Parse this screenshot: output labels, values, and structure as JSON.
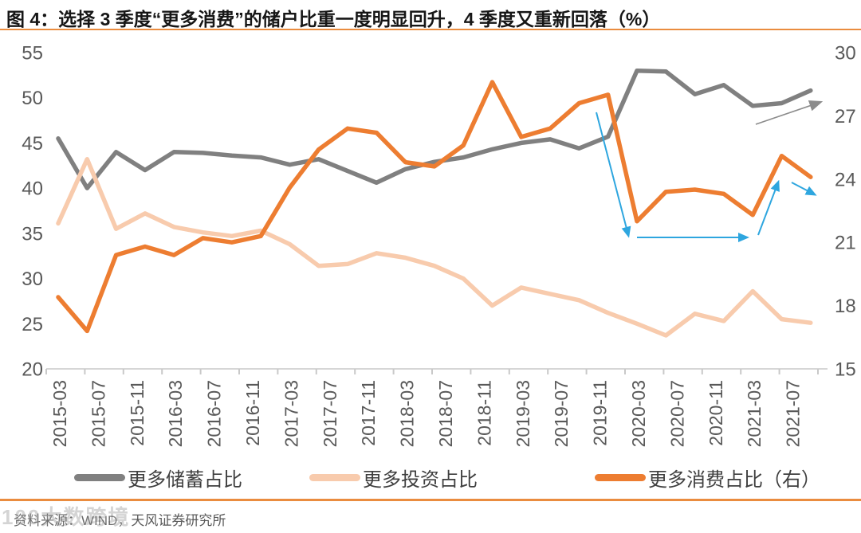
{
  "title": {
    "text": "图 4：选择 3 季度“更多消费”的储户比重一度明显回升，4 季度又重新回落（%）"
  },
  "source": {
    "text": "资料来源：WIND，天风证券研究所"
  },
  "watermark": {
    "text": "100大数跨境"
  },
  "legend": [
    {
      "label": "更多储蓄占比",
      "color": "#808080"
    },
    {
      "label": "更多投资占比",
      "color": "#F8CBAD"
    },
    {
      "label": "更多消费占比（右）",
      "color": "#ED7D31"
    }
  ],
  "chart_data": {
    "type": "line",
    "x": [
      "2015-03",
      "2015-06",
      "2015-09",
      "2015-12",
      "2016-03",
      "2016-06",
      "2016-09",
      "2016-12",
      "2017-03",
      "2017-06",
      "2017-09",
      "2017-12",
      "2018-03",
      "2018-06",
      "2018-09",
      "2018-12",
      "2019-03",
      "2019-06",
      "2019-09",
      "2019-12",
      "2020-03",
      "2020-06",
      "2020-09",
      "2020-12",
      "2021-03",
      "2021-06",
      "2021-09"
    ],
    "x_tick_labels": [
      "2015-03",
      "2015-07",
      "2015-11",
      "2016-03",
      "2016-07",
      "2016-11",
      "2017-03",
      "2017-07",
      "2017-11",
      "2018-03",
      "2018-07",
      "2018-11",
      "2019-03",
      "2019-07",
      "2019-11",
      "2020-03",
      "2020-07",
      "2020-11",
      "2021-03",
      "2021-07"
    ],
    "left_axis": {
      "min": 20,
      "max": 55,
      "ticks": [
        55,
        50,
        45,
        40,
        35,
        30,
        25,
        20
      ]
    },
    "right_axis": {
      "min": 15,
      "max": 30,
      "ticks": [
        30,
        27,
        24,
        21,
        18,
        15
      ]
    },
    "grid": "off",
    "legend_position": "bottom",
    "series": [
      {
        "id": "savings",
        "name": "更多储蓄占比",
        "axis": "left",
        "color": "#808080",
        "values": [
          45.5,
          40.0,
          44.0,
          42.0,
          44.0,
          43.9,
          43.6,
          43.4,
          42.6,
          43.2,
          41.9,
          40.6,
          42.1,
          42.9,
          43.4,
          44.3,
          45.0,
          45.4,
          44.4,
          45.7,
          53.0,
          52.9,
          50.4,
          51.4,
          49.1,
          49.4,
          50.8
        ]
      },
      {
        "id": "investment",
        "name": "更多投资占比",
        "axis": "left",
        "color": "#F8CBAD",
        "values": [
          36.1,
          43.2,
          35.5,
          37.2,
          35.7,
          35.1,
          34.7,
          35.3,
          33.8,
          31.4,
          31.6,
          32.8,
          32.3,
          31.4,
          30.0,
          27.0,
          29.0,
          28.3,
          27.6,
          26.2,
          25.0,
          23.7,
          26.1,
          25.3,
          28.6,
          25.5,
          25.1
        ]
      },
      {
        "id": "consumption",
        "name": "更多消费占比（右）",
        "axis": "right",
        "color": "#ED7D31",
        "values": [
          18.4,
          16.8,
          20.4,
          20.8,
          20.4,
          21.2,
          21.0,
          21.3,
          23.6,
          25.4,
          26.4,
          26.2,
          24.8,
          24.6,
          25.6,
          28.6,
          26.0,
          26.4,
          27.6,
          28.0,
          22.0,
          23.4,
          23.5,
          23.3,
          22.3,
          25.1,
          24.1
        ]
      }
    ],
    "annotations": [
      {
        "id": "drop-arrow",
        "color": "#2EA6DF",
        "width": 2,
        "from": [
          748,
          101
        ],
        "to": [
          786,
          247
        ]
      },
      {
        "id": "flat-arrow",
        "color": "#2EA6DF",
        "width": 2,
        "from": [
          799,
          258
        ],
        "to": [
          928,
          258
        ]
      },
      {
        "id": "rebound-arrow",
        "color": "#2EA6DF",
        "width": 2,
        "from": [
          951,
          255
        ],
        "to": [
          973,
          197
        ]
      },
      {
        "id": "fall-arrow",
        "color": "#2EA6DF",
        "width": 2,
        "from": [
          993,
          189
        ],
        "to": [
          1014,
          200
        ]
      },
      {
        "id": "savings-trend-arrow",
        "color": "#8C8C8C",
        "width": 1.6,
        "from": [
          948,
          116
        ],
        "to": [
          1018,
          92
        ]
      }
    ]
  }
}
